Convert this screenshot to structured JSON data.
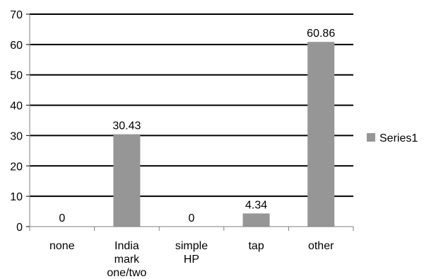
{
  "chart_data": {
    "type": "bar",
    "categories": [
      [
        "none"
      ],
      [
        "India",
        "mark",
        "one/two"
      ],
      [
        "simple",
        "HP"
      ],
      [
        "tap"
      ],
      [
        "other"
      ]
    ],
    "series": [
      {
        "name": "Series1",
        "values": [
          0,
          30.43,
          0,
          4.34,
          60.86
        ]
      }
    ],
    "data_labels": [
      "0",
      "30.43",
      "0",
      "4.34",
      "60.86"
    ],
    "yticks": [
      "0",
      "10",
      "20",
      "30",
      "40",
      "50",
      "60",
      "70"
    ],
    "ylim": [
      0,
      70
    ],
    "grid": true,
    "legend_position": "right",
    "bar_color": "#969696",
    "legend": [
      "Series1"
    ]
  }
}
